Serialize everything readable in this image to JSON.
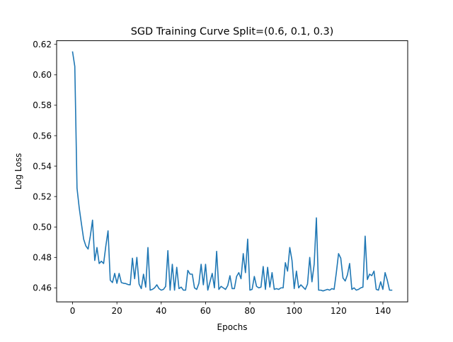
{
  "chart_data": {
    "type": "line",
    "title": "SGD Training Curve Split=(0.6, 0.1, 0.3)",
    "xlabel": "Epochs",
    "ylabel": "Log Loss",
    "xlim": [
      -7.2,
      151.2
    ],
    "ylim": [
      0.4508,
      0.6224
    ],
    "x_ticks": [
      0,
      20,
      40,
      60,
      80,
      100,
      120,
      140
    ],
    "y_ticks": [
      0.46,
      0.48,
      0.5,
      0.52,
      0.54,
      0.56,
      0.58,
      0.6,
      0.62
    ],
    "grid": false,
    "line_color": "#1f77b4",
    "series": [
      {
        "values": [
          0.615,
          0.6055,
          0.5255,
          0.5125,
          0.502,
          0.492,
          0.4875,
          0.4855,
          0.494,
          0.5045,
          0.478,
          0.4865,
          0.476,
          0.4775,
          0.476,
          0.4875,
          0.4975,
          0.465,
          0.4635,
          0.4695,
          0.463,
          0.4695,
          0.4635,
          0.463,
          0.4628,
          0.4622,
          0.462,
          0.4795,
          0.466,
          0.48,
          0.4625,
          0.4595,
          0.469,
          0.4605,
          0.4865,
          0.4585,
          0.459,
          0.46,
          0.462,
          0.4595,
          0.4585,
          0.459,
          0.461,
          0.4845,
          0.4585,
          0.4755,
          0.4585,
          0.4735,
          0.4595,
          0.4605,
          0.4585,
          0.4585,
          0.4715,
          0.469,
          0.469,
          0.46,
          0.459,
          0.463,
          0.4755,
          0.462,
          0.4755,
          0.4585,
          0.464,
          0.4695,
          0.46,
          0.484,
          0.459,
          0.461,
          0.46,
          0.459,
          0.4615,
          0.468,
          0.4595,
          0.4595,
          0.4675,
          0.47,
          0.466,
          0.4825,
          0.47,
          0.492,
          0.4585,
          0.459,
          0.4675,
          0.461,
          0.46,
          0.4605,
          0.474,
          0.459,
          0.4735,
          0.4605,
          0.47,
          0.459,
          0.4595,
          0.459,
          0.46,
          0.46,
          0.4765,
          0.471,
          0.4865,
          0.478,
          0.4595,
          0.471,
          0.46,
          0.462,
          0.4605,
          0.459,
          0.4625,
          0.48,
          0.464,
          0.4755,
          0.506,
          0.4585,
          0.4585,
          0.458,
          0.4585,
          0.459,
          0.4585,
          0.4595,
          0.459,
          0.47,
          0.4825,
          0.4795,
          0.4665,
          0.4645,
          0.4685,
          0.476,
          0.459,
          0.46,
          0.4585,
          0.459,
          0.46,
          0.4605,
          0.494,
          0.4655,
          0.469,
          0.468,
          0.471,
          0.459,
          0.4585,
          0.464,
          0.459,
          0.47,
          0.465,
          0.4585,
          0.4585
        ]
      }
    ]
  }
}
